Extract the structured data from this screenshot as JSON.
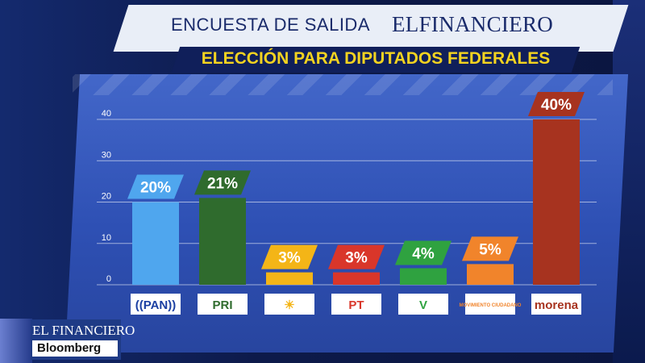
{
  "header": {
    "title": "ENCUESTA DE SALIDA",
    "brand": "ELFINANCIERO",
    "subtitle": "ELECCIÓN PARA DIPUTADOS FEDERALES"
  },
  "broadcast_logo": {
    "top": "EL FINANCIERO",
    "bottom": "Bloomberg"
  },
  "chart_data": {
    "type": "bar",
    "title": "ELECCIÓN PARA DIPUTADOS FEDERALES",
    "xlabel": "",
    "ylabel": "",
    "ylim": [
      0,
      45
    ],
    "yticks": [
      "0",
      "10",
      "20",
      "30",
      "40"
    ],
    "grid": true,
    "categories": [
      "PAN",
      "PRI",
      "PRD",
      "PT",
      "PVEM",
      "MOVIMIENTO CIUDADANO",
      "morena"
    ],
    "values": [
      20,
      21,
      3,
      3,
      4,
      5,
      40
    ],
    "data_labels": [
      "20%",
      "21%",
      "3%",
      "3%",
      "4%",
      "5%",
      "40%"
    ],
    "colors": [
      "#4fa6ee",
      "#2f6b2d",
      "#f4b517",
      "#d9362a",
      "#2fa240",
      "#f1842b",
      "#a7331f"
    ],
    "logo_texts": [
      "((PAN))",
      "PRI",
      "☀",
      "PT",
      "V",
      "MOVIMIENTO CIUDADANO",
      "morena"
    ]
  }
}
